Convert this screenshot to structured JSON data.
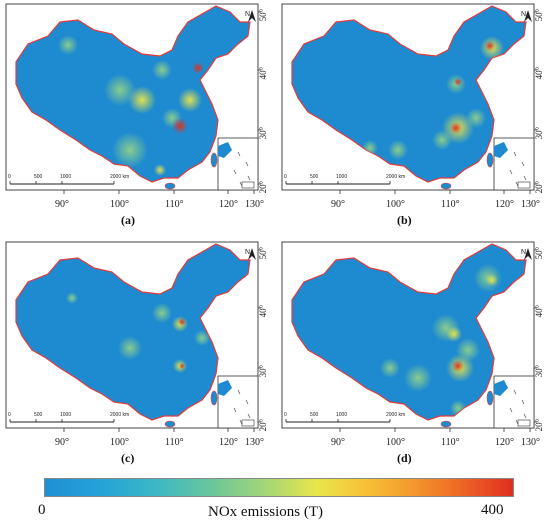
{
  "panels": [
    {
      "id": "a",
      "label": "(a)"
    },
    {
      "id": "b",
      "label": "(b)"
    },
    {
      "id": "c",
      "label": "(c)"
    },
    {
      "id": "d",
      "label": "(d)"
    }
  ],
  "lon_ticks": [
    "90°",
    "100°",
    "110°",
    "120°",
    "130°"
  ],
  "lat_ticks": [
    "50°",
    "40°",
    "30°",
    "20°"
  ],
  "scalebar": [
    "0",
    "500",
    "1000",
    "2000 km"
  ],
  "north": "N",
  "colorbar": {
    "min": "0",
    "max": "400",
    "title": "NOx emissions (T)",
    "colors": [
      "#1f8fd6",
      "#3cb8c4",
      "#a8d873",
      "#e8e64a",
      "#f49b2d",
      "#e02e20"
    ]
  },
  "map_colors": {
    "base": "#1e8bd0",
    "border": "#e23b3b",
    "low": "#8fd08a",
    "mid": "#e8e64a",
    "high": "#e02e20"
  }
}
